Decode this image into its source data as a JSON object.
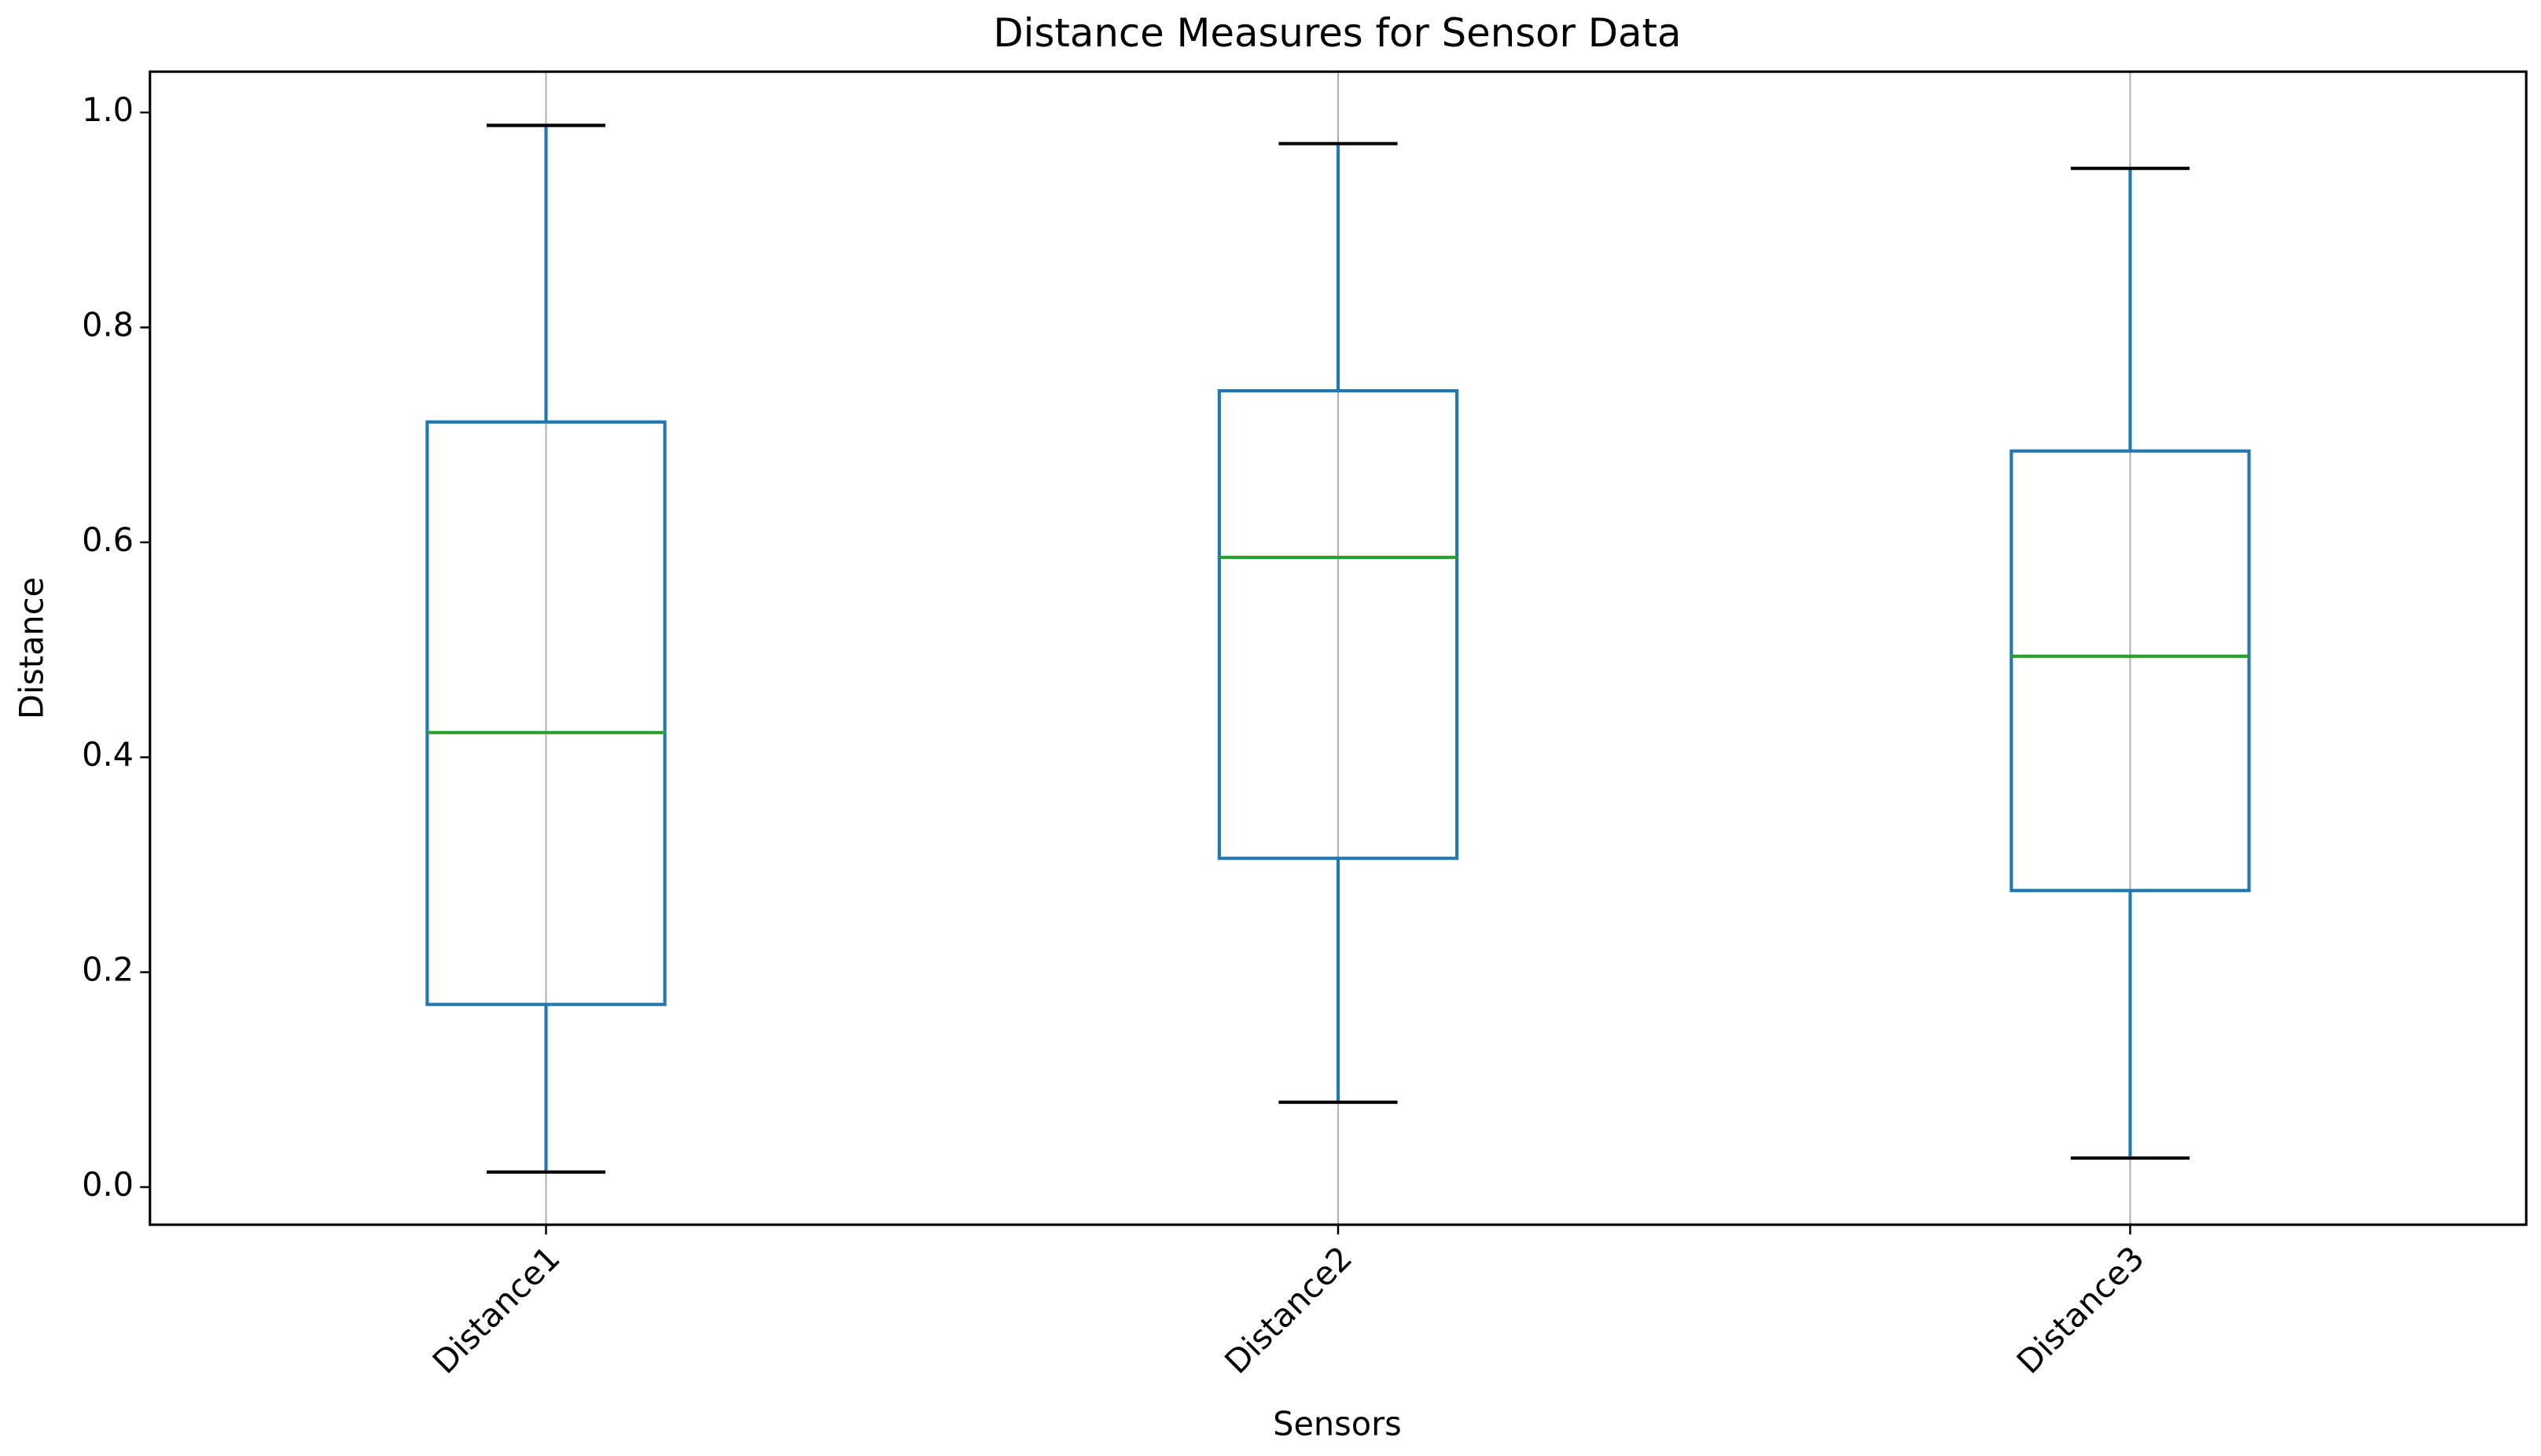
{
  "chart_data": {
    "type": "box",
    "title": "Distance Measures for Sensor Data",
    "x_label": "Sensors",
    "y_label": "Distance",
    "categories": [
      "Distance1",
      "Distance2",
      "Distance3"
    ],
    "boxes": [
      {
        "low": 0.014,
        "q1": 0.17,
        "median": 0.423,
        "q3": 0.712,
        "high": 0.988
      },
      {
        "low": 0.079,
        "q1": 0.306,
        "median": 0.586,
        "q3": 0.741,
        "high": 0.971
      },
      {
        "low": 0.027,
        "q1": 0.276,
        "median": 0.494,
        "q3": 0.685,
        "high": 0.948
      }
    ],
    "box_color": "#1f77b4",
    "median_color": "#2ca02c",
    "cap_color": "#000000",
    "ylim": [
      -0.035,
      1.038
    ],
    "yticks": [
      {
        "value": 0,
        "label": "0.0"
      },
      {
        "value": 0.2,
        "label": "0.2"
      },
      {
        "value": 0.4,
        "label": "0.4"
      },
      {
        "value": 0.6,
        "label": "0.6"
      },
      {
        "value": 0.8,
        "label": "0.8"
      },
      {
        "value": 1,
        "label": "1.0"
      }
    ],
    "grid": true
  }
}
